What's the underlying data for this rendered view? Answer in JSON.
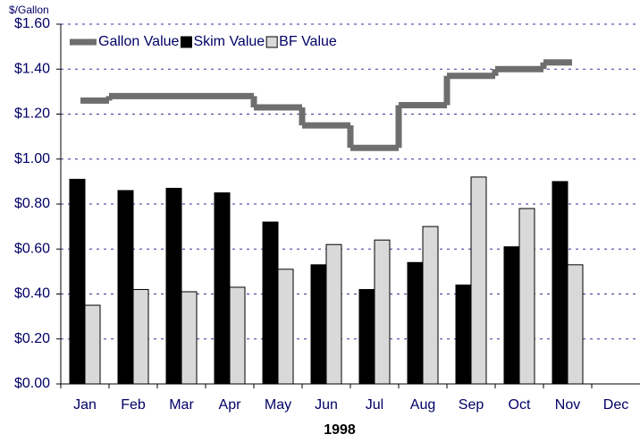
{
  "chart_data": {
    "type": "bar-step",
    "y_label": "$/Gallon",
    "x_label": "1998",
    "categories": [
      "Jan",
      "Feb",
      "Mar",
      "Apr",
      "May",
      "Jun",
      "Jul",
      "Aug",
      "Sep",
      "Oct",
      "Nov",
      "Dec"
    ],
    "series": [
      {
        "name": "Gallon Value",
        "color": "#6e6e6e",
        "kind": "step",
        "values": [
          1.26,
          1.28,
          1.28,
          1.28,
          1.23,
          1.15,
          1.05,
          1.24,
          1.37,
          1.4,
          1.43,
          null
        ]
      },
      {
        "name": "Skim Value",
        "color": "#000000",
        "kind": "bar",
        "values": [
          0.91,
          0.86,
          0.87,
          0.85,
          0.72,
          0.53,
          0.42,
          0.54,
          0.44,
          0.61,
          0.9,
          null
        ]
      },
      {
        "name": "BF Value",
        "color": "#d9d9d9",
        "kind": "bar",
        "values": [
          0.35,
          0.42,
          0.41,
          0.43,
          0.51,
          0.62,
          0.64,
          0.7,
          0.92,
          0.78,
          0.53,
          null
        ]
      }
    ],
    "ylim": [
      0,
      1.6
    ],
    "yticks": [
      {
        "value": 0,
        "label": "$0.00"
      },
      {
        "value": 0.2,
        "label": "$0.20"
      },
      {
        "value": 0.4,
        "label": "$0.40"
      },
      {
        "value": 0.6,
        "label": "$0.60"
      },
      {
        "value": 0.8,
        "label": "$0.80"
      },
      {
        "value": 1.0,
        "label": "$1.00"
      },
      {
        "value": 1.2,
        "label": "$1.20"
      },
      {
        "value": 1.4,
        "label": "$1.40"
      },
      {
        "value": 1.6,
        "label": "$1.60"
      }
    ],
    "grid": true,
    "legend": "top"
  }
}
